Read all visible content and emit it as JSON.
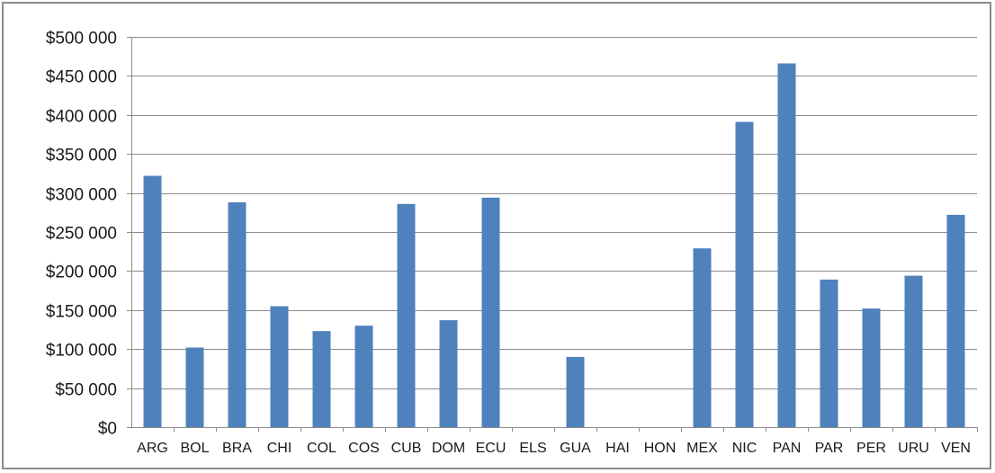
{
  "chart_data": {
    "type": "bar",
    "title": "",
    "xlabel": "",
    "ylabel": "",
    "ylim": [
      0,
      500000
    ],
    "y_ticks": [
      0,
      50000,
      100000,
      150000,
      200000,
      250000,
      300000,
      350000,
      400000,
      450000,
      500000
    ],
    "y_tick_labels": [
      "$0",
      "$50 000",
      "$100 000",
      "$150 000",
      "$200 000",
      "$250 000",
      "$300 000",
      "$350 000",
      "$400 000",
      "$450 000",
      "$500 000"
    ],
    "grid": true,
    "legend": "none",
    "bar_color": "#4f81bd",
    "categories": [
      "ARG",
      "BOL",
      "BRA",
      "CHI",
      "COL",
      "COS",
      "CUB",
      "DOM",
      "ECU",
      "ELS",
      "GUA",
      "HAI",
      "HON",
      "MEX",
      "NIC",
      "PAN",
      "PAR",
      "PER",
      "URU",
      "VEN"
    ],
    "values": [
      322000,
      102000,
      288000,
      155000,
      123000,
      130000,
      286000,
      137000,
      294000,
      0,
      90000,
      0,
      0,
      229000,
      391000,
      466000,
      189000,
      152000,
      194000,
      272000
    ]
  }
}
